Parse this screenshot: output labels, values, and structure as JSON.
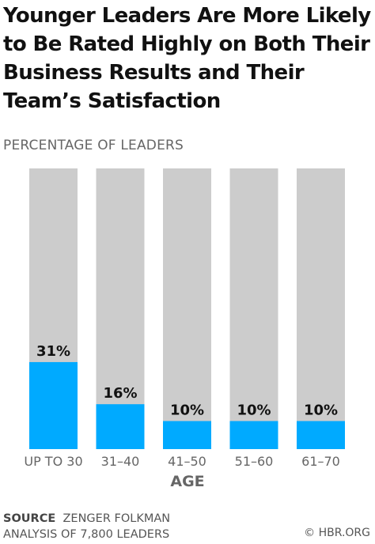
{
  "title": "Younger Leaders Are More Likely to Be Rated Highly on Both Their Business Results and Their Team’s Satisfaction",
  "colors": {
    "bar": "#00aaff",
    "track": "#cccccc",
    "axis_text": "#666666"
  },
  "chart_data": {
    "type": "bar",
    "title": "Younger Leaders Are More Likely to Be Rated Highly on Both Their Business Results and Their Team’s Satisfaction",
    "ylabel": "PERCENTAGE OF LEADERS",
    "xlabel": "AGE",
    "categories": [
      "UP TO 30",
      "31–40",
      "41–50",
      "51–60",
      "61–70"
    ],
    "values": [
      31,
      16,
      10,
      10,
      10
    ],
    "value_labels": [
      "31%",
      "16%",
      "10%",
      "10%",
      "10%"
    ],
    "ylim": [
      0,
      100
    ],
    "grid": false,
    "legend": "none"
  },
  "source": {
    "label": "SOURCE",
    "text_line1": "ZENGER FOLKMAN",
    "text_line2": "ANALYSIS OF 7,800 LEADERS"
  },
  "credit": "© HBR.ORG"
}
